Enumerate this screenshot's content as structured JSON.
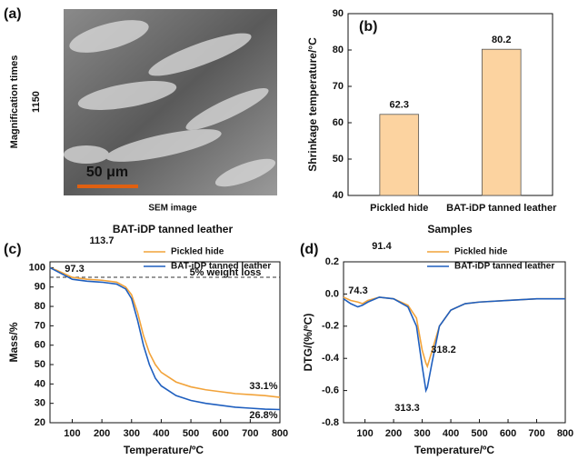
{
  "image_panel": {
    "panel_label": "(a)",
    "side_label": "Magnification times",
    "side_value": "1150",
    "scale_bar": "50 μm",
    "caption": "SEM image",
    "title": "BAT-iDP tanned leather"
  },
  "chart_data": [
    {
      "type": "bar",
      "panel_label": "(b)",
      "x_label": "Samples",
      "y_label": "Shrinkage temperature/°C",
      "categories": [
        "Pickled hide",
        "BAT-iDP tanned leather"
      ],
      "values": [
        62.3,
        80.2
      ],
      "color": "#fcd3a0",
      "ylim": [
        40,
        90
      ],
      "yticks": [
        40,
        50,
        60,
        70,
        80,
        90
      ]
    },
    {
      "type": "line",
      "panel_label": "(c)",
      "x_label": "Temperature/ºC",
      "y_label": "Mass/%",
      "x": [
        25,
        50,
        100,
        150,
        200,
        250,
        280,
        300,
        320,
        340,
        360,
        380,
        400,
        450,
        500,
        550,
        600,
        650,
        700,
        750,
        800
      ],
      "series": [
        {
          "name": "Pickled hide",
          "color": "#f2a33a",
          "values": [
            100,
            98.5,
            95,
            94,
            93.5,
            92.5,
            90,
            86,
            77,
            65,
            56,
            50,
            46,
            41,
            38.5,
            37,
            36,
            35,
            34.5,
            34,
            33.1
          ]
        },
        {
          "name": "BAT-iDP tanned leather",
          "color": "#1f5fbf",
          "values": [
            100,
            98,
            94,
            93,
            92.5,
            91.5,
            89,
            84,
            73,
            60,
            50,
            43,
            39,
            34,
            31.5,
            30,
            29,
            28,
            27.5,
            27,
            26.8
          ]
        }
      ],
      "reference_line": 95,
      "annotations": [
        {
          "text": "113.7",
          "color": "#f2a33a"
        },
        {
          "text": "97.3",
          "color": "#1f5fbf"
        },
        {
          "text": "5% weight loss",
          "color": "#111"
        },
        {
          "text": "33.1%",
          "color": "#f2a33a"
        },
        {
          "text": "26.8%",
          "color": "#1f5fbf"
        }
      ],
      "xlim": [
        25,
        800
      ],
      "xticks": [
        100,
        200,
        300,
        400,
        500,
        600,
        700,
        800
      ],
      "ylim": [
        20,
        103
      ],
      "yticks": [
        20,
        30,
        40,
        50,
        60,
        70,
        80,
        90,
        100
      ]
    },
    {
      "type": "line",
      "panel_label": "(d)",
      "x_label": "Temperature/ºC",
      "y_label": "DTG/(%/ºC)",
      "x": [
        25,
        50,
        75,
        91,
        110,
        150,
        200,
        250,
        280,
        300,
        313,
        318,
        335,
        360,
        400,
        450,
        500,
        600,
        700,
        800
      ],
      "series": [
        {
          "name": "Pickled hide",
          "color": "#f2a33a",
          "values": [
            -0.02,
            -0.04,
            -0.05,
            -0.06,
            -0.04,
            -0.02,
            -0.03,
            -0.07,
            -0.15,
            -0.35,
            -0.43,
            -0.45,
            -0.35,
            -0.2,
            -0.1,
            -0.06,
            -0.05,
            -0.04,
            -0.03,
            -0.03
          ]
        },
        {
          "name": "BAT-iDP tanned leather",
          "color": "#1f5fbf",
          "values": [
            -0.03,
            -0.06,
            -0.08,
            -0.07,
            -0.05,
            -0.02,
            -0.03,
            -0.08,
            -0.2,
            -0.45,
            -0.6,
            -0.58,
            -0.42,
            -0.2,
            -0.1,
            -0.06,
            -0.05,
            -0.04,
            -0.03,
            -0.03
          ]
        }
      ],
      "annotations": [
        {
          "text": "91.4",
          "color": "#f2a33a"
        },
        {
          "text": "74.3",
          "color": "#1f5fbf"
        },
        {
          "text": "318.2",
          "color": "#f2a33a"
        },
        {
          "text": "313.3",
          "color": "#1f5fbf"
        }
      ],
      "xlim": [
        25,
        800
      ],
      "xticks": [
        100,
        200,
        300,
        400,
        500,
        600,
        700,
        800
      ],
      "ylim": [
        -0.8,
        0.2
      ],
      "yticks": [
        -0.8,
        -0.6,
        -0.4,
        -0.2,
        {
          "value": 0,
          "label": "0.0"
        },
        0.2
      ]
    }
  ]
}
